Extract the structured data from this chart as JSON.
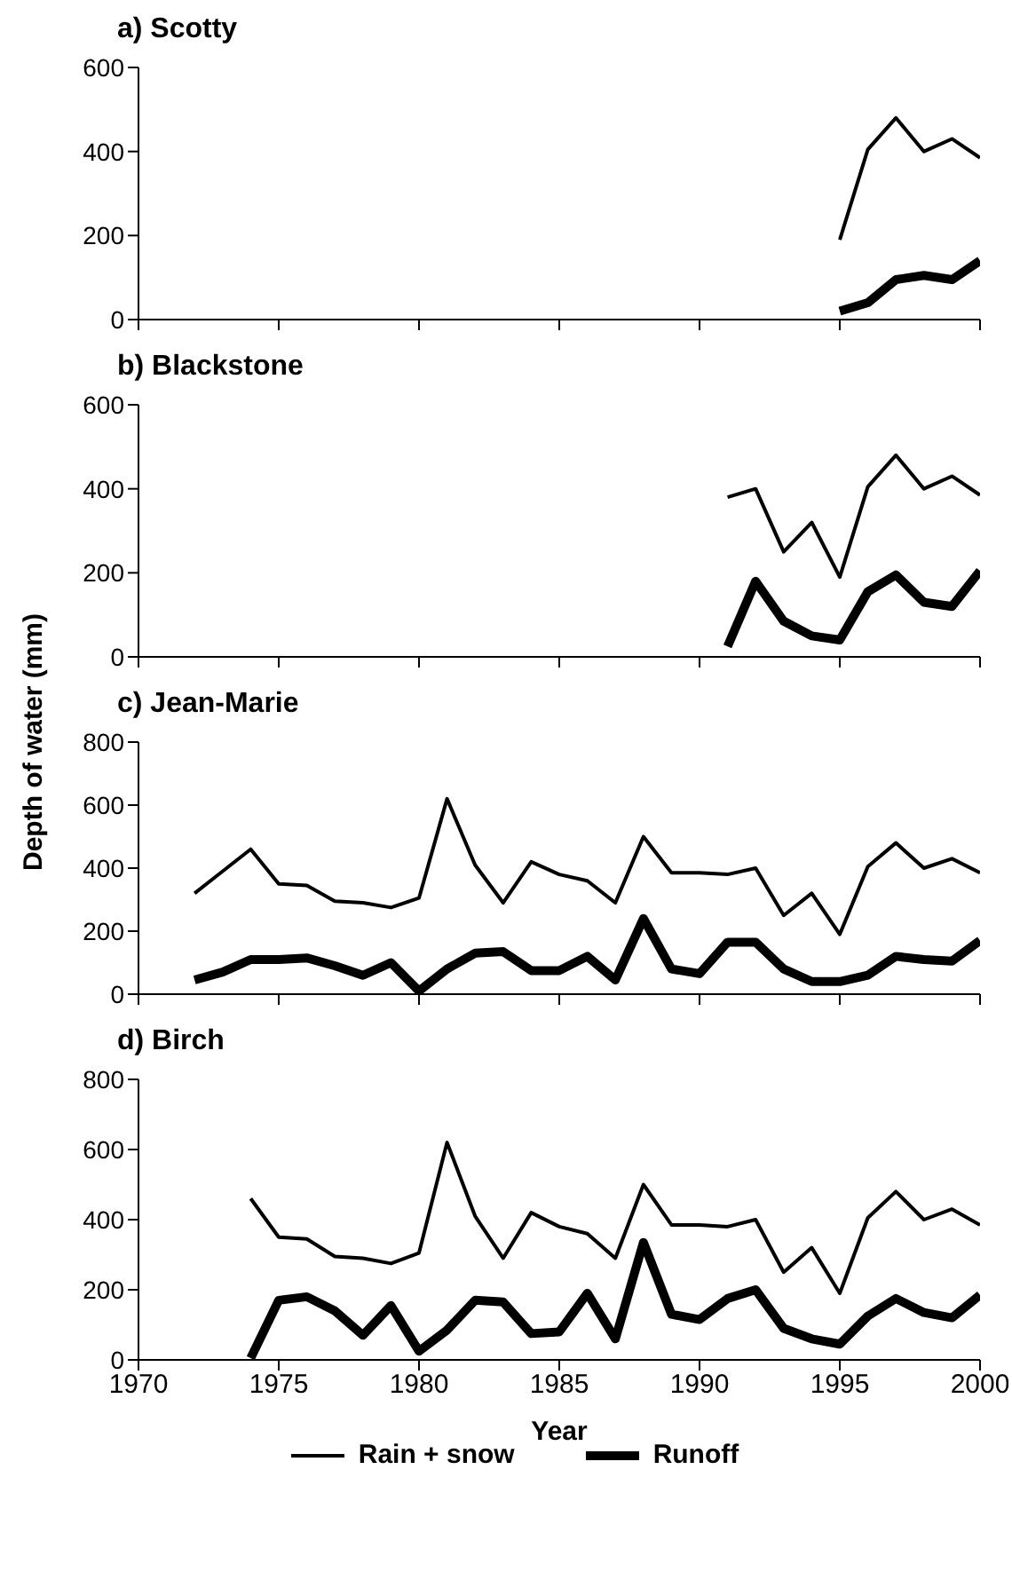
{
  "chart_data": [
    {
      "type": "line",
      "title": "a) Scotty",
      "x": [
        1995,
        1996,
        1997,
        1998,
        1999,
        2000
      ],
      "series": [
        {
          "color": "#000000",
          "values": [
            190,
            405,
            480,
            400,
            430,
            385
          ]
        },
        {
          "color": "#000000",
          "values": [
            20,
            40,
            95,
            105,
            95,
            140
          ]
        }
      ],
      "xlim": [
        1970,
        2000
      ],
      "xticks": [
        1970,
        1975,
        1980,
        1985,
        1990,
        1995,
        2000
      ],
      "ylim": [
        0,
        600
      ],
      "yticks": [
        0,
        200,
        400,
        600
      ],
      "tick_labels": "y",
      "grid": false,
      "legend": false,
      "marker": "none",
      "line_style": "solid"
    },
    {
      "type": "line",
      "title": "b) Blackstone",
      "x": [
        1991,
        1992,
        1993,
        1994,
        1995,
        1996,
        1997,
        1998,
        1999,
        2000
      ],
      "series": [
        {
          "color": "#000000",
          "values": [
            380,
            400,
            250,
            320,
            190,
            405,
            480,
            400,
            430,
            385
          ]
        },
        {
          "color": "#000000",
          "values": [
            25,
            180,
            85,
            50,
            40,
            155,
            195,
            130,
            120,
            205
          ]
        }
      ],
      "xlim": [
        1970,
        2000
      ],
      "xticks": [
        1970,
        1975,
        1980,
        1985,
        1990,
        1995,
        2000
      ],
      "ylim": [
        0,
        600
      ],
      "yticks": [
        0,
        200,
        400,
        600
      ],
      "tick_labels": "y",
      "grid": false,
      "legend": false,
      "marker": "none",
      "line_style": "solid"
    },
    {
      "type": "line",
      "title": "c) Jean-Marie",
      "ylabel": "Depth of water (mm)",
      "x": [
        1972,
        1973,
        1974,
        1975,
        1976,
        1977,
        1978,
        1979,
        1980,
        1981,
        1982,
        1983,
        1984,
        1985,
        1986,
        1987,
        1988,
        1989,
        1990,
        1991,
        1992,
        1993,
        1994,
        1995,
        1996,
        1997,
        1998,
        1999,
        2000
      ],
      "series": [
        {
          "color": "#000000",
          "values": [
            320,
            390,
            460,
            350,
            345,
            295,
            290,
            275,
            305,
            620,
            410,
            290,
            420,
            380,
            360,
            290,
            500,
            385,
            385,
            380,
            400,
            250,
            320,
            190,
            405,
            480,
            400,
            430,
            385
          ]
        },
        {
          "color": "#000000",
          "values": [
            45,
            70,
            110,
            110,
            115,
            90,
            60,
            100,
            10,
            80,
            130,
            135,
            75,
            75,
            120,
            45,
            240,
            80,
            65,
            165,
            165,
            80,
            40,
            40,
            60,
            120,
            110,
            105,
            170
          ]
        }
      ],
      "xlim": [
        1970,
        2000
      ],
      "xticks": [
        1970,
        1975,
        1980,
        1985,
        1990,
        1995,
        2000
      ],
      "ylim": [
        0,
        800
      ],
      "yticks": [
        0,
        200,
        400,
        600,
        800
      ],
      "tick_labels": "y",
      "grid": false,
      "legend": false,
      "marker": "none",
      "line_style": "solid"
    },
    {
      "type": "line",
      "title": "d) Birch",
      "xlabel": "Year",
      "x": [
        1974,
        1975,
        1976,
        1977,
        1978,
        1979,
        1980,
        1981,
        1982,
        1983,
        1984,
        1985,
        1986,
        1987,
        1988,
        1989,
        1990,
        1991,
        1992,
        1993,
        1994,
        1995,
        1996,
        1997,
        1998,
        1999,
        2000
      ],
      "series": [
        {
          "name": "Rain + snow",
          "color": "#000000",
          "values": [
            460,
            350,
            345,
            295,
            290,
            275,
            305,
            620,
            410,
            290,
            420,
            380,
            360,
            290,
            500,
            385,
            385,
            380,
            400,
            250,
            320,
            190,
            405,
            480,
            400,
            430,
            385
          ]
        },
        {
          "name": "Runoff",
          "color": "#000000",
          "values": [
            5,
            170,
            180,
            140,
            70,
            155,
            25,
            85,
            170,
            165,
            75,
            80,
            190,
            60,
            335,
            130,
            115,
            175,
            200,
            90,
            60,
            45,
            125,
            175,
            135,
            120,
            185
          ]
        }
      ],
      "xlim": [
        1970,
        2000
      ],
      "xticks": [
        1970,
        1975,
        1980,
        1985,
        1990,
        1995,
        2000
      ],
      "ylim": [
        0,
        800
      ],
      "yticks": [
        0,
        200,
        400,
        600,
        800
      ],
      "grid": false,
      "legend": "bottom",
      "marker": "none",
      "line_style": "solid"
    }
  ]
}
